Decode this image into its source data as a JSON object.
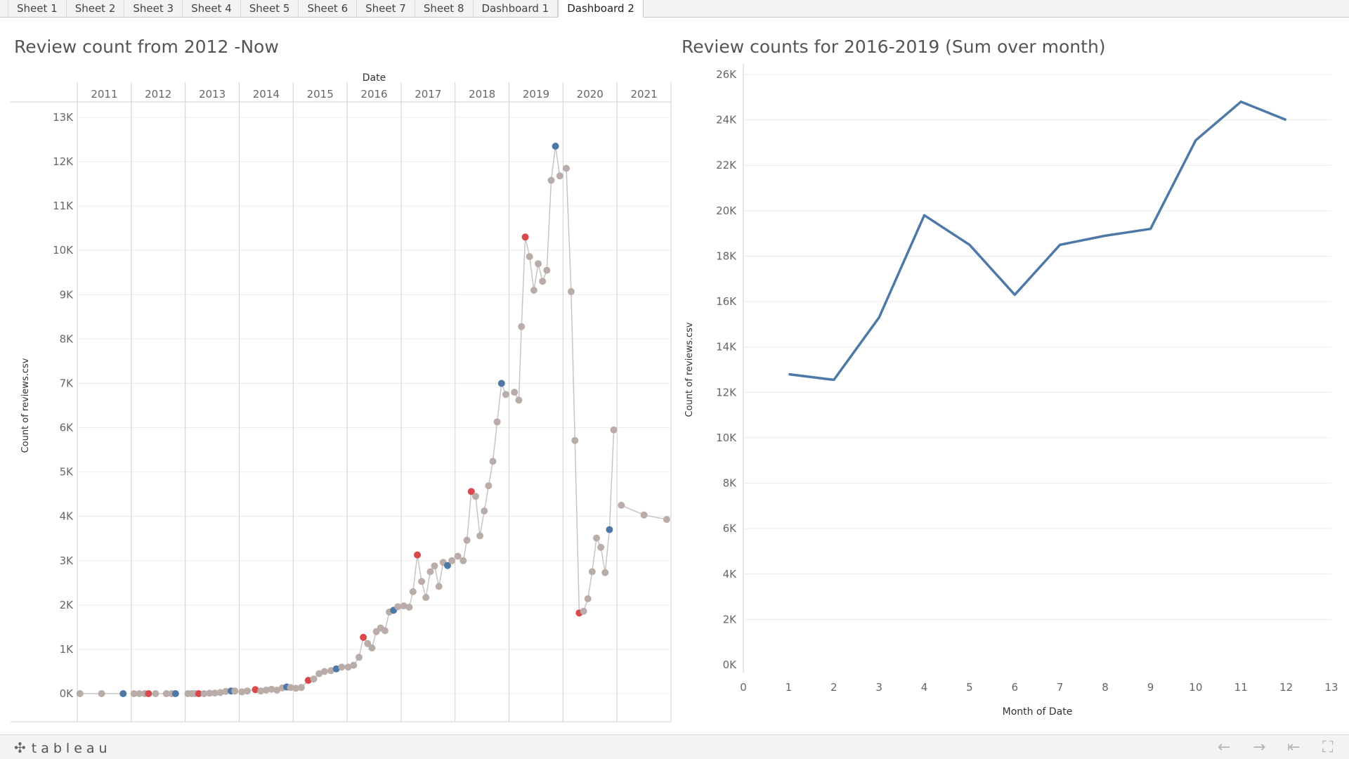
{
  "tabs": [
    {
      "label": "Sheet 1"
    },
    {
      "label": "Sheet 2"
    },
    {
      "label": "Sheet 3"
    },
    {
      "label": "Sheet 4"
    },
    {
      "label": "Sheet 5"
    },
    {
      "label": "Sheet 6"
    },
    {
      "label": "Sheet 7"
    },
    {
      "label": "Sheet 8"
    },
    {
      "label": "Dashboard 1"
    },
    {
      "label": "Dashboard 2",
      "active": true
    }
  ],
  "colors": {
    "line_gray": "#c7c3c3",
    "point_gray": "#b9aca9",
    "point_red": "#d9484a",
    "point_blue": "#4e79a7",
    "series_blue": "#4e79a7",
    "grid": "#ececec",
    "divider": "#cfcfcf"
  },
  "bottom": {
    "logo": "tableau",
    "icons": [
      "undo-icon",
      "redo-icon",
      "revert-icon",
      "fullscreen-icon"
    ]
  },
  "chart_data": [
    {
      "type": "scatter",
      "title": "Review count from 2012 -Now",
      "header_label": "Date",
      "ylabel": "Count of reviews.csv",
      "ylim": [
        0,
        13000
      ],
      "y_ticks": [
        "0K",
        "1K",
        "2K",
        "3K",
        "4K",
        "5K",
        "6K",
        "7K",
        "8K",
        "9K",
        "10K",
        "11K",
        "12K",
        "13K"
      ],
      "columns": [
        "2011",
        "2012",
        "2013",
        "2014",
        "2015",
        "2016",
        "2017",
        "2018",
        "2019",
        "2020",
        "2021"
      ],
      "series": [
        {
          "points": [
            [
              2011.05,
              0,
              "g"
            ],
            [
              2011.45,
              0,
              "g"
            ],
            [
              2011.85,
              0,
              "b"
            ],
            [
              2012.05,
              0,
              "g"
            ],
            [
              2012.15,
              0,
              "g"
            ],
            [
              2012.25,
              0,
              "g"
            ],
            [
              2012.32,
              0,
              "r"
            ],
            [
              2012.45,
              0,
              "g"
            ],
            [
              2012.65,
              0,
              "g"
            ],
            [
              2012.75,
              0,
              "g"
            ],
            [
              2012.82,
              0,
              "b"
            ],
            [
              2013.05,
              0,
              "g"
            ],
            [
              2013.12,
              0,
              "g"
            ],
            [
              2013.18,
              0,
              "g"
            ],
            [
              2013.25,
              0,
              "r"
            ],
            [
              2013.35,
              0,
              "g"
            ],
            [
              2013.45,
              10,
              "g"
            ],
            [
              2013.55,
              15,
              "g"
            ],
            [
              2013.65,
              25,
              "g"
            ],
            [
              2013.75,
              50,
              "g"
            ],
            [
              2013.85,
              60,
              "b"
            ],
            [
              2013.92,
              60,
              "g"
            ],
            [
              2014.05,
              40,
              "g"
            ],
            [
              2014.15,
              60,
              "g"
            ],
            [
              2014.3,
              90,
              "r"
            ],
            [
              2014.4,
              60,
              "g"
            ],
            [
              2014.5,
              80,
              "g"
            ],
            [
              2014.6,
              100,
              "g"
            ],
            [
              2014.7,
              80,
              "g"
            ],
            [
              2014.8,
              130,
              "g"
            ],
            [
              2014.88,
              150,
              "b"
            ],
            [
              2014.95,
              140,
              "g"
            ],
            [
              2015.05,
              120,
              "g"
            ],
            [
              2015.15,
              140,
              "g"
            ],
            [
              2015.28,
              300,
              "r"
            ],
            [
              2015.38,
              330,
              "g"
            ],
            [
              2015.48,
              450,
              "g"
            ],
            [
              2015.58,
              500,
              "g"
            ],
            [
              2015.7,
              520,
              "g"
            ],
            [
              2015.8,
              560,
              "b"
            ],
            [
              2015.9,
              600,
              "g"
            ],
            [
              2016.02,
              600,
              "g"
            ],
            [
              2016.12,
              640,
              "g"
            ],
            [
              2016.22,
              820,
              "g"
            ],
            [
              2016.3,
              1270,
              "r"
            ],
            [
              2016.38,
              1130,
              "g"
            ],
            [
              2016.46,
              1030,
              "g"
            ],
            [
              2016.54,
              1400,
              "g"
            ],
            [
              2016.62,
              1480,
              "g"
            ],
            [
              2016.7,
              1420,
              "g"
            ],
            [
              2016.78,
              1840,
              "g"
            ],
            [
              2016.86,
              1880,
              "b"
            ],
            [
              2016.94,
              1960,
              "g"
            ],
            [
              2017.05,
              1980,
              "g"
            ],
            [
              2017.15,
              1950,
              "g"
            ],
            [
              2017.22,
              2300,
              "g"
            ],
            [
              2017.3,
              3130,
              "r"
            ],
            [
              2017.38,
              2530,
              "g"
            ],
            [
              2017.46,
              2170,
              "g"
            ],
            [
              2017.54,
              2750,
              "g"
            ],
            [
              2017.62,
              2880,
              "g"
            ],
            [
              2017.7,
              2420,
              "g"
            ],
            [
              2017.78,
              2960,
              "g"
            ],
            [
              2017.86,
              2890,
              "b"
            ],
            [
              2017.94,
              3000,
              "g"
            ],
            [
              2018.05,
              3100,
              "g"
            ],
            [
              2018.15,
              3000,
              "g"
            ],
            [
              2018.22,
              3460,
              "g"
            ],
            [
              2018.3,
              4560,
              "r"
            ],
            [
              2018.38,
              4450,
              "g"
            ],
            [
              2018.46,
              3560,
              "g"
            ],
            [
              2018.54,
              4120,
              "g"
            ],
            [
              2018.62,
              4690,
              "g"
            ],
            [
              2018.7,
              5240,
              "g"
            ],
            [
              2018.78,
              6130,
              "g"
            ],
            [
              2018.86,
              7000,
              "b"
            ],
            [
              2018.94,
              6750,
              "g"
            ],
            [
              2019.1,
              6800,
              "g"
            ],
            [
              2019.18,
              6620,
              "g"
            ],
            [
              2019.23,
              8280,
              "g"
            ],
            [
              2019.3,
              10300,
              "r"
            ],
            [
              2019.38,
              9860,
              "g"
            ],
            [
              2019.46,
              9100,
              "g"
            ],
            [
              2019.54,
              9700,
              "g"
            ],
            [
              2019.62,
              9300,
              "g"
            ],
            [
              2019.7,
              9550,
              "g"
            ],
            [
              2019.78,
              11580,
              "g"
            ],
            [
              2019.86,
              12350,
              "b"
            ],
            [
              2019.94,
              11680,
              "g"
            ],
            [
              2020.06,
              11850,
              "g"
            ],
            [
              2020.15,
              9070,
              "g"
            ],
            [
              2020.22,
              5710,
              "g"
            ],
            [
              2020.3,
              1820,
              "r"
            ],
            [
              2020.38,
              1860,
              "g"
            ],
            [
              2020.46,
              2140,
              "g"
            ],
            [
              2020.54,
              2750,
              "g"
            ],
            [
              2020.62,
              3510,
              "g"
            ],
            [
              2020.7,
              3300,
              "g"
            ],
            [
              2020.78,
              2730,
              "g"
            ],
            [
              2020.86,
              3700,
              "b"
            ],
            [
              2020.94,
              5950,
              "g"
            ],
            [
              2021.08,
              4250,
              "g"
            ],
            [
              2021.5,
              4030,
              "g"
            ],
            [
              2021.92,
              3930,
              "g"
            ]
          ]
        }
      ]
    },
    {
      "type": "line",
      "title": "Review counts for 2016-2019 (Sum over month)",
      "xlabel": "Month of Date",
      "ylabel": "Count of reviews.csv",
      "xlim": [
        0,
        13
      ],
      "ylim": [
        0,
        26000
      ],
      "x_ticks": [
        "0",
        "1",
        "2",
        "3",
        "4",
        "5",
        "6",
        "7",
        "8",
        "9",
        "10",
        "11",
        "12",
        "13"
      ],
      "y_ticks": [
        "0K",
        "2K",
        "4K",
        "6K",
        "8K",
        "10K",
        "12K",
        "14K",
        "16K",
        "18K",
        "20K",
        "22K",
        "24K",
        "26K"
      ],
      "series": [
        {
          "x": [
            1,
            2,
            3,
            4,
            5,
            6,
            7,
            8,
            9,
            10,
            11,
            12
          ],
          "values": [
            12800,
            12550,
            15300,
            19800,
            18500,
            16300,
            18500,
            18900,
            19200,
            23100,
            24800,
            24000
          ]
        }
      ]
    }
  ]
}
